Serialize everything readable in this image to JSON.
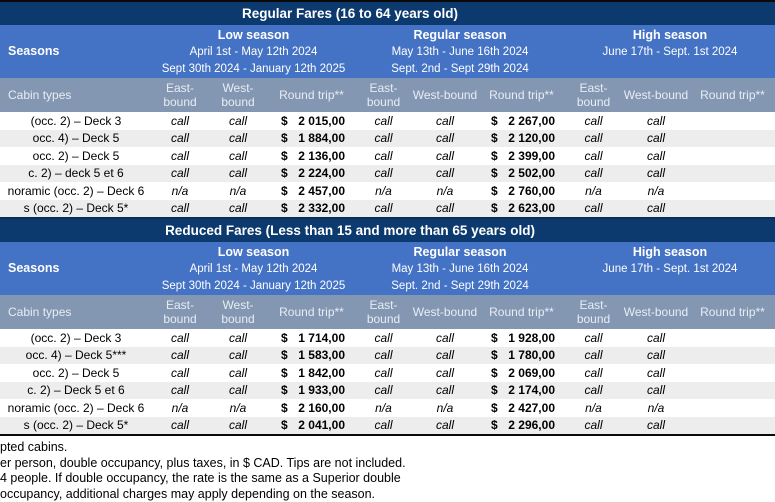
{
  "currency": "$",
  "tables": [
    {
      "title": "Regular Fares (16 to 64 years old)",
      "seasons_label": "Seasons",
      "seasons": [
        {
          "name": "Low season",
          "dates1": "April 1st - May 12th 2024",
          "dates2": "Sept 30th 2024 - January 12th 2025"
        },
        {
          "name": "Regular season",
          "dates1": "May 13th - June 16th 2024",
          "dates2": "Sept. 2nd - Sept 29th 2024"
        },
        {
          "name": "High season",
          "dates1": "June 17th - Sept. 1st 2024",
          "dates2": ""
        }
      ],
      "col_headers": {
        "cabin": "Cabin types",
        "east": "East-bound",
        "west": "West-bound",
        "round": "Round trip**"
      },
      "rows": [
        {
          "cabin": "(occ. 2) – Deck 3",
          "low_east": "call",
          "low_west": "call",
          "low_rt": "2 015,00",
          "reg_east": "call",
          "reg_west": "call",
          "reg_rt": "2 267,00",
          "high_east": "call",
          "high_west": "call"
        },
        {
          "cabin": "occ. 4) – Deck 5",
          "low_east": "call",
          "low_west": "call",
          "low_rt": "1 884,00",
          "reg_east": "call",
          "reg_west": "call",
          "reg_rt": "2 120,00",
          "high_east": "call",
          "high_west": "call"
        },
        {
          "cabin": "occ. 2) – Deck 5",
          "low_east": "call",
          "low_west": "call",
          "low_rt": "2 136,00",
          "reg_east": "call",
          "reg_west": "call",
          "reg_rt": "2 399,00",
          "high_east": "call",
          "high_west": "call"
        },
        {
          "cabin": "c. 2) – deck 5 et 6",
          "low_east": "call",
          "low_west": "call",
          "low_rt": "2 224,00",
          "reg_east": "call",
          "reg_west": "call",
          "reg_rt": "2 502,00",
          "high_east": "call",
          "high_west": "call"
        },
        {
          "cabin": "noramic (occ. 2) – Deck 6",
          "low_east": "n/a",
          "low_west": "n/a",
          "low_rt": "2 457,00",
          "reg_east": "n/a",
          "reg_west": "n/a",
          "reg_rt": "2 760,00",
          "high_east": "n/a",
          "high_west": "n/a"
        },
        {
          "cabin": "s (occ. 2) – Deck 5*",
          "low_east": "call",
          "low_west": "call",
          "low_rt": "2 332,00",
          "reg_east": "call",
          "reg_west": "call",
          "reg_rt": "2 623,00",
          "high_east": "call",
          "high_west": "call"
        }
      ]
    },
    {
      "title": "Reduced Fares (Less than 15 and more than 65 years old)",
      "seasons_label": "Seasons",
      "seasons": [
        {
          "name": "Low season",
          "dates1": "April 1st - May 12th 2024",
          "dates2": "Sept 30th 2024 - January 12th 2025"
        },
        {
          "name": "Regular season",
          "dates1": "May 13th - June 16th 2024",
          "dates2": "Sept. 2nd - Sept 29th 2024"
        },
        {
          "name": "High season",
          "dates1": "June 17th - Sept. 1st 2024",
          "dates2": ""
        }
      ],
      "col_headers": {
        "cabin": "Cabin types",
        "east": "East-bound",
        "west": "West-bound",
        "round": "Round trip**"
      },
      "rows": [
        {
          "cabin": "(occ. 2) – Deck 3",
          "low_east": "call",
          "low_west": "call",
          "low_rt": "1 714,00",
          "reg_east": "call",
          "reg_west": "call",
          "reg_rt": "1 928,00",
          "high_east": "call",
          "high_west": "call"
        },
        {
          "cabin": "occ. 4) – Deck 5***",
          "low_east": "call",
          "low_west": "call",
          "low_rt": "1 583,00",
          "reg_east": "call",
          "reg_west": "call",
          "reg_rt": "1 780,00",
          "high_east": "call",
          "high_west": "call"
        },
        {
          "cabin": "occ. 2) – Deck 5",
          "low_east": "call",
          "low_west": "call",
          "low_rt": "1 842,00",
          "reg_east": "call",
          "reg_west": "call",
          "reg_rt": "2 069,00",
          "high_east": "call",
          "high_west": "call"
        },
        {
          "cabin": "c. 2) – Deck 5 et 6",
          "low_east": "call",
          "low_west": "call",
          "low_rt": "1 933,00",
          "reg_east": "call",
          "reg_west": "call",
          "reg_rt": "2 174,00",
          "high_east": "call",
          "high_west": "call"
        },
        {
          "cabin": "noramic (occ. 2) – Deck 6",
          "low_east": "n/a",
          "low_west": "n/a",
          "low_rt": "2 160,00",
          "reg_east": "n/a",
          "reg_west": "n/a",
          "reg_rt": "2 427,00",
          "high_east": "n/a",
          "high_west": "n/a"
        },
        {
          "cabin": "s (occ. 2) – Deck 5*",
          "low_east": "call",
          "low_west": "call",
          "low_rt": "2 041,00",
          "reg_east": "call",
          "reg_west": "call",
          "reg_rt": "2 296,00",
          "high_east": "call",
          "high_west": "call"
        }
      ]
    }
  ],
  "footnotes": [
    "pted cabins.",
    "er person, double occupancy, plus taxes, in $ CAD. Tips are not included.",
    "4 people. If double occupancy, the rate is the same as a Superior double",
    "occupancy, additional charges may apply depending on the season."
  ]
}
